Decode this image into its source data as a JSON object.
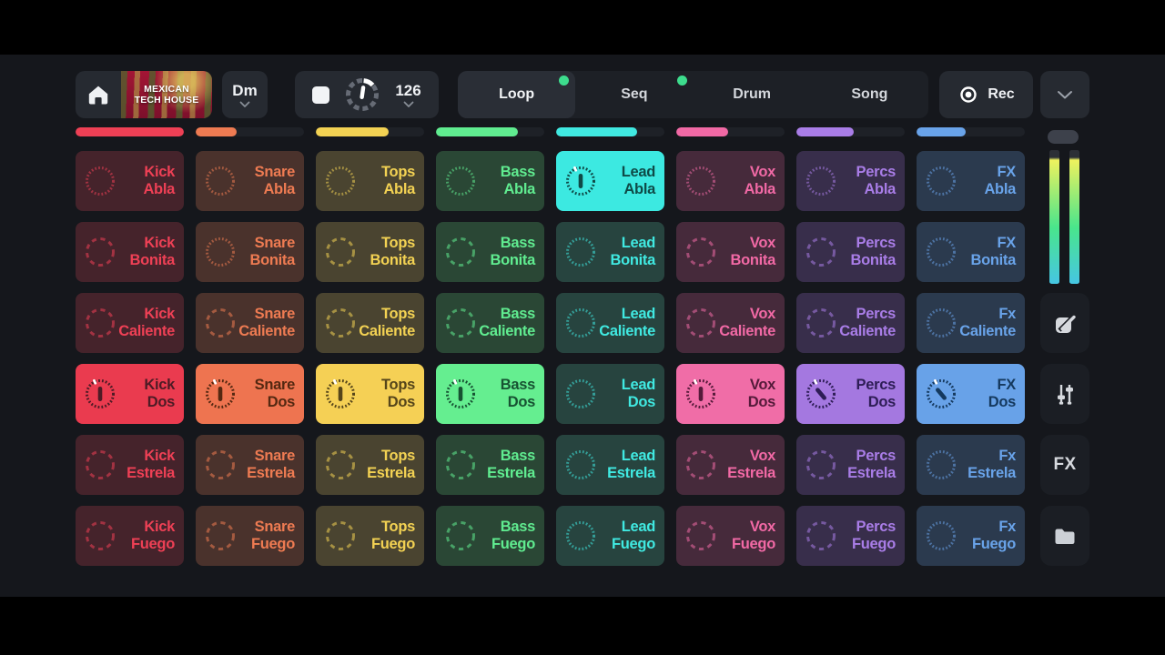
{
  "topbar": {
    "project": {
      "line1": "MEXICAN",
      "line2": "TECH HOUSE"
    },
    "key": {
      "value": "Dm"
    },
    "transport": {
      "bpm": "126"
    },
    "tabs": [
      {
        "label": "Loop",
        "active": true,
        "dot": true
      },
      {
        "label": "Seq",
        "active": false,
        "dot": true
      },
      {
        "label": "Drum",
        "active": false,
        "dot": false
      },
      {
        "label": "Song",
        "active": false,
        "dot": false
      }
    ],
    "rec": {
      "label": "Rec"
    }
  },
  "columns": [
    {
      "name": "Kick",
      "accent": "#ee4055",
      "bright_bg": "#ea3b4f",
      "dark_bg": "#45232b",
      "dark_text": "#4d1b25",
      "progress": 100
    },
    {
      "name": "Snare",
      "accent": "#ee7b52",
      "bright_bg": "#ee7450",
      "dark_bg": "#4a322c",
      "dark_text": "#542811",
      "progress": 38
    },
    {
      "name": "Tops",
      "accent": "#f3d253",
      "bright_bg": "#f5d055",
      "dark_bg": "#4a4430",
      "dark_text": "#55451a",
      "progress": 67
    },
    {
      "name": "Bass",
      "accent": "#60ec90",
      "bright_bg": "#65ee90",
      "dark_bg": "#2a4735",
      "dark_text": "#175232",
      "progress": 76
    },
    {
      "name": "Lead",
      "accent": "#40e9e1",
      "bright_bg": "#3ce9e1",
      "dark_bg": "#27443f",
      "dark_text": "#0f4a47",
      "progress": 75
    },
    {
      "name": "Vox",
      "accent": "#f169a5",
      "bright_bg": "#f06da7",
      "dark_bg": "#462a3b",
      "dark_text": "#551a3a",
      "progress": 48
    },
    {
      "name": "Percs",
      "accent": "#a97de7",
      "bright_bg": "#a478e0",
      "dark_bg": "#382e4b",
      "dark_text": "#2e1d56",
      "progress": 53
    },
    {
      "name": "FX",
      "accent": "#69a3e9",
      "bright_bg": "#68a2e8",
      "dark_bg": "#2b3a4e",
      "dark_text": "#15395e",
      "progress": 45
    }
  ],
  "grid": {
    "rows": [
      {
        "name": "Abla",
        "cells": [
          {
            "line1": "Kick",
            "line2": "Abla",
            "state": "dark",
            "ring": "fine",
            "angle": null
          },
          {
            "line1": "Snare",
            "line2": "Abla",
            "state": "dark",
            "ring": "fine",
            "angle": null
          },
          {
            "line1": "Tops",
            "line2": "Abla",
            "state": "dark",
            "ring": "fine",
            "angle": null
          },
          {
            "line1": "Bass",
            "line2": "Abla",
            "state": "dark",
            "ring": "fine",
            "angle": null
          },
          {
            "line1": "Lead",
            "line2": "Abla",
            "state": "bright",
            "ring": "fine",
            "angle": 0
          },
          {
            "line1": "Vox",
            "line2": "Abla",
            "state": "dark",
            "ring": "fine",
            "angle": null
          },
          {
            "line1": "Percs",
            "line2": "Abla",
            "state": "dark",
            "ring": "fine",
            "angle": null
          },
          {
            "line1": "FX",
            "line2": "Abla",
            "state": "dark",
            "ring": "fine",
            "angle": null
          }
        ]
      },
      {
        "name": "Bonita",
        "cells": [
          {
            "line1": "Kick",
            "line2": "Bonita",
            "state": "dark",
            "ring": "coarse",
            "angle": null
          },
          {
            "line1": "Snare",
            "line2": "Bonita",
            "state": "dark",
            "ring": "fine",
            "angle": null
          },
          {
            "line1": "Tops",
            "line2": "Bonita",
            "state": "dark",
            "ring": "coarse",
            "angle": null
          },
          {
            "line1": "Bass",
            "line2": "Bonita",
            "state": "dark",
            "ring": "coarse",
            "angle": null
          },
          {
            "line1": "Lead",
            "line2": "Bonita",
            "state": "dark",
            "ring": "fine",
            "angle": null
          },
          {
            "line1": "Vox",
            "line2": "Bonita",
            "state": "dark",
            "ring": "coarse",
            "angle": null
          },
          {
            "line1": "Percs",
            "line2": "Bonita",
            "state": "dark",
            "ring": "coarse",
            "angle": null
          },
          {
            "line1": "FX",
            "line2": "Bonita",
            "state": "dark",
            "ring": "fine",
            "angle": null
          }
        ]
      },
      {
        "name": "Caliente",
        "cells": [
          {
            "line1": "Kick",
            "line2": "Caliente",
            "state": "dark",
            "ring": "coarse",
            "angle": null
          },
          {
            "line1": "Snare",
            "line2": "Caliente",
            "state": "dark",
            "ring": "coarse",
            "angle": null
          },
          {
            "line1": "Tops",
            "line2": "Caliente",
            "state": "dark",
            "ring": "coarse",
            "angle": null
          },
          {
            "line1": "Bass",
            "line2": "Caliente",
            "state": "dark",
            "ring": "coarse",
            "angle": null
          },
          {
            "line1": "Lead",
            "line2": "Caliente",
            "state": "dark",
            "ring": "fine",
            "angle": null
          },
          {
            "line1": "Vox",
            "line2": "Caliente",
            "state": "dark",
            "ring": "coarse",
            "angle": null
          },
          {
            "line1": "Percs",
            "line2": "Caliente",
            "state": "dark",
            "ring": "coarse",
            "angle": null
          },
          {
            "line1": "Fx",
            "line2": "Caliente",
            "state": "dark",
            "ring": "fine",
            "angle": null
          }
        ]
      },
      {
        "name": "Dos",
        "cells": [
          {
            "line1": "Kick",
            "line2": "Dos",
            "state": "bright",
            "ring": "fine",
            "angle": 0
          },
          {
            "line1": "Snare",
            "line2": "Dos",
            "state": "bright",
            "ring": "fine",
            "angle": 0
          },
          {
            "line1": "Tops",
            "line2": "Dos",
            "state": "bright",
            "ring": "fine",
            "angle": 0
          },
          {
            "line1": "Bass",
            "line2": "Dos",
            "state": "bright",
            "ring": "fine",
            "angle": 0
          },
          {
            "line1": "Lead",
            "line2": "Dos",
            "state": "dark",
            "ring": "fine",
            "angle": null
          },
          {
            "line1": "Vox",
            "line2": "Dos",
            "state": "bright",
            "ring": "fine",
            "angle": 0
          },
          {
            "line1": "Percs",
            "line2": "Dos",
            "state": "bright",
            "ring": "fine",
            "angle": -40
          },
          {
            "line1": "FX",
            "line2": "Dos",
            "state": "bright",
            "ring": "fine",
            "angle": -40
          }
        ]
      },
      {
        "name": "Estrela",
        "cells": [
          {
            "line1": "Kick",
            "line2": "Estrela",
            "state": "dark",
            "ring": "coarse",
            "angle": null
          },
          {
            "line1": "Snare",
            "line2": "Estrela",
            "state": "dark",
            "ring": "coarse",
            "angle": null
          },
          {
            "line1": "Tops",
            "line2": "Estrela",
            "state": "dark",
            "ring": "coarse",
            "angle": null
          },
          {
            "line1": "Bass",
            "line2": "Estrela",
            "state": "dark",
            "ring": "coarse",
            "angle": null
          },
          {
            "line1": "Lead",
            "line2": "Estrela",
            "state": "dark",
            "ring": "fine",
            "angle": null
          },
          {
            "line1": "Vox",
            "line2": "Estrela",
            "state": "dark",
            "ring": "coarse",
            "angle": null
          },
          {
            "line1": "Percs",
            "line2": "Estrela",
            "state": "dark",
            "ring": "coarse",
            "angle": null
          },
          {
            "line1": "Fx",
            "line2": "Estrela",
            "state": "dark",
            "ring": "fine",
            "angle": null
          }
        ]
      },
      {
        "name": "Fuego",
        "cells": [
          {
            "line1": "Kick",
            "line2": "Fuego",
            "state": "dark",
            "ring": "coarse",
            "angle": null
          },
          {
            "line1": "Snare",
            "line2": "Fuego",
            "state": "dark",
            "ring": "coarse",
            "angle": null
          },
          {
            "line1": "Tops",
            "line2": "Fuego",
            "state": "dark",
            "ring": "coarse",
            "angle": null
          },
          {
            "line1": "Bass",
            "line2": "Fuego",
            "state": "dark",
            "ring": "coarse",
            "angle": null
          },
          {
            "line1": "Lead",
            "line2": "Fuego",
            "state": "dark",
            "ring": "fine",
            "angle": null
          },
          {
            "line1": "Vox",
            "line2": "Fuego",
            "state": "dark",
            "ring": "coarse",
            "angle": null
          },
          {
            "line1": "Percs",
            "line2": "Fuego",
            "state": "dark",
            "ring": "coarse",
            "angle": null
          },
          {
            "line1": "Fx",
            "line2": "Fuego",
            "state": "dark",
            "ring": "fine",
            "angle": null
          }
        ]
      }
    ]
  },
  "sidebar": {
    "fx_label": "FX",
    "icons": [
      "edit-icon",
      "mixer-icon",
      "fx-button",
      "folder-icon"
    ],
    "meter_colors": {
      "top": "#eef25e",
      "mid": "#49e58c",
      "bottom": "#46c6e3"
    }
  },
  "accents": {
    "tab_dot": "#3ddc8d"
  }
}
